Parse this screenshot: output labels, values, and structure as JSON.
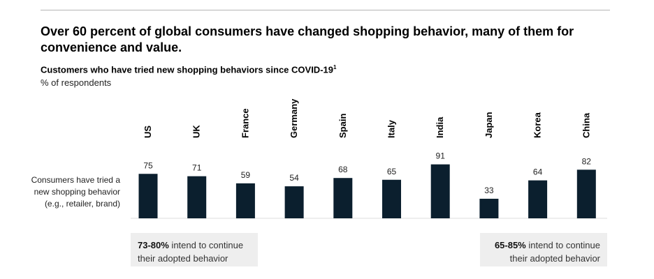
{
  "headline": "Over 60 percent of global consumers have changed shopping behavior, many of them for convenience and value.",
  "subtitle": "Customers who have tried new shopping behaviors since COVID-19",
  "subtitle_footnote": "1",
  "unit_label": "% of respondents",
  "row_label": "Consumers have tried a new shopping behavior (e.g., retailer, brand)",
  "callout_left": {
    "highlight": "73-80%",
    "text": " intend to continue their adopted behavior"
  },
  "callout_right": {
    "highlight": "65-85%",
    "text": " intend to continue their adopted behavior"
  },
  "colors": {
    "bar": "#0b1f2e",
    "callout_bg": "#eeeeee",
    "rule": "#b5b5b5"
  },
  "chart_data": {
    "type": "bar",
    "categories": [
      "US",
      "UK",
      "France",
      "Germany",
      "Spain",
      "Italy",
      "India",
      "Japan",
      "Korea",
      "China"
    ],
    "values": [
      75,
      71,
      59,
      54,
      68,
      65,
      91,
      33,
      64,
      82
    ],
    "ylim": [
      0,
      100
    ],
    "grid": false,
    "legend": "none"
  }
}
